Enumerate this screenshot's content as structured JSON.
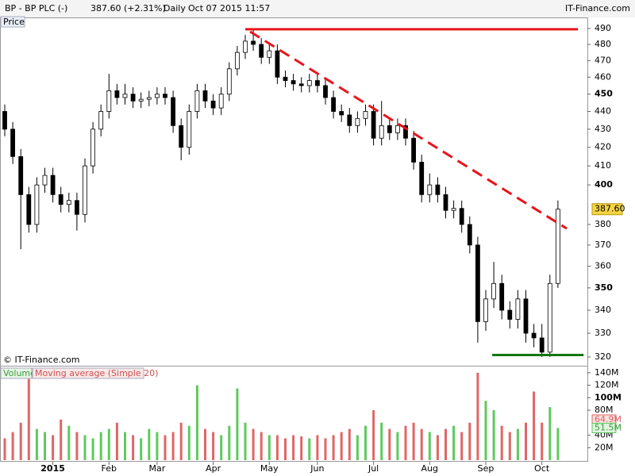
{
  "header": {
    "symbol": "BP - BP PLC (-)",
    "quote": "387.60 (+2.31%)",
    "period": "Daily",
    "datetime": "Oct 07 2015 11:57",
    "site": "IT-Finance.com"
  },
  "chart_data": {
    "type": "candlestick",
    "panel_label": "Price",
    "copyright": "© IT-Finance.com",
    "log_scale": true,
    "categories": [
      null,
      null,
      null,
      null,
      null,
      null,
      "2015",
      null,
      null,
      null,
      null,
      null,
      null,
      "Feb",
      null,
      null,
      null,
      null,
      null,
      "Mar",
      null,
      null,
      null,
      null,
      null,
      null,
      "Apr",
      null,
      null,
      null,
      null,
      null,
      null,
      "May",
      null,
      null,
      null,
      null,
      null,
      "Jun",
      null,
      null,
      null,
      null,
      null,
      null,
      "Jul",
      null,
      null,
      null,
      null,
      null,
      null,
      "Aug",
      null,
      null,
      null,
      null,
      null,
      null,
      "Sep",
      null,
      null,
      null,
      null,
      null,
      null,
      "Oct",
      null,
      null
    ],
    "open": [
      440,
      430,
      415,
      395,
      380,
      400,
      405,
      395,
      390,
      392,
      385,
      410,
      430,
      440,
      452,
      448,
      450,
      446,
      447,
      448,
      450,
      448,
      432,
      420,
      440,
      452,
      446,
      442,
      450,
      465,
      475,
      482,
      480,
      472,
      476,
      460,
      458,
      456,
      455,
      458,
      455,
      448,
      440,
      438,
      432,
      436,
      440,
      425,
      432,
      428,
      432,
      425,
      412,
      395,
      400,
      395,
      387,
      388,
      380,
      370,
      335,
      345,
      352,
      340,
      336,
      345,
      330,
      328,
      322,
      352
    ],
    "high": [
      444,
      434,
      419,
      399,
      404,
      409,
      409,
      399,
      396,
      396,
      414,
      434,
      444,
      462,
      456,
      456,
      454,
      451,
      452,
      454,
      454,
      452,
      436,
      444,
      456,
      456,
      450,
      454,
      469,
      479,
      486,
      489,
      484,
      480,
      480,
      464,
      462,
      460,
      462,
      462,
      459,
      452,
      444,
      442,
      440,
      444,
      444,
      446,
      436,
      436,
      436,
      429,
      416,
      406,
      404,
      399,
      392,
      392,
      384,
      374,
      349,
      362,
      356,
      344,
      349,
      349,
      334,
      334,
      356,
      392
    ],
    "low": [
      426,
      411,
      368,
      376,
      376,
      396,
      391,
      386,
      386,
      377,
      381,
      406,
      426,
      436,
      444,
      444,
      442,
      442,
      443,
      444,
      444,
      428,
      413,
      416,
      436,
      442,
      438,
      438,
      446,
      461,
      471,
      476,
      468,
      468,
      456,
      454,
      452,
      451,
      451,
      451,
      444,
      436,
      434,
      428,
      428,
      432,
      421,
      421,
      424,
      424,
      421,
      408,
      391,
      391,
      391,
      383,
      383,
      376,
      366,
      326,
      331,
      341,
      336,
      332,
      332,
      326,
      324,
      320,
      320,
      350
    ],
    "close": [
      430,
      415,
      395,
      380,
      400,
      405,
      395,
      390,
      392,
      385,
      410,
      430,
      440,
      452,
      448,
      450,
      446,
      447,
      448,
      450,
      448,
      432,
      420,
      440,
      452,
      446,
      442,
      450,
      465,
      475,
      482,
      480,
      472,
      476,
      460,
      458,
      456,
      455,
      458,
      455,
      448,
      440,
      438,
      432,
      436,
      440,
      425,
      432,
      428,
      432,
      425,
      412,
      395,
      400,
      395,
      387,
      388,
      380,
      370,
      335,
      345,
      352,
      340,
      336,
      345,
      330,
      328,
      322,
      352,
      387.6
    ],
    "last_label": "387.60",
    "up_color": "#ffffff",
    "down_color": "#000000",
    "ylim": [
      316.7,
      494
    ],
    "yticks": [
      490,
      480,
      470,
      460,
      450,
      440,
      430,
      420,
      410,
      400,
      380,
      370,
      360,
      350,
      340,
      330,
      320
    ],
    "trendlines": [
      {
        "color": "#e8141a",
        "dashed": false,
        "start": [
          30,
          489.5
        ],
        "end": [
          71.5,
          489.5
        ]
      },
      {
        "color": "#e8141a",
        "dashed": true,
        "start": [
          30.6,
          488
        ],
        "end": [
          70.1,
          378
        ]
      },
      {
        "color": "#127812",
        "dashed": false,
        "start": [
          60.8,
          320.8
        ],
        "end": [
          72.2,
          320.8
        ]
      }
    ],
    "volume": {
      "name": "Volume",
      "up_color": "#5fc95f",
      "down_color": "#e06666",
      "values": [
        35,
        45,
        60,
        130,
        50,
        45,
        40,
        65,
        55,
        45,
        40,
        35,
        45,
        50,
        60,
        45,
        40,
        35,
        50,
        45,
        40,
        45,
        60,
        55,
        120,
        50,
        45,
        40,
        55,
        115,
        60,
        50,
        45,
        40,
        40,
        35,
        40,
        38,
        35,
        40,
        35,
        40,
        45,
        50,
        40,
        55,
        80,
        60,
        50,
        45,
        55,
        60,
        50,
        45,
        40,
        50,
        55,
        45,
        60,
        140,
        95,
        80,
        55,
        45,
        50,
        60,
        110,
        60,
        85,
        51.5
      ],
      "last_label": "51.5M",
      "ylim": [
        0,
        150
      ],
      "yticks": [
        {
          "value": 140,
          "label": "140M"
        },
        {
          "value": 120,
          "label": "120M"
        },
        {
          "value": 100,
          "label": "100M"
        },
        {
          "value": 80,
          "label": "80M"
        },
        {
          "value": 40,
          "label": "40M"
        },
        {
          "value": 20,
          "label": "20M"
        }
      ],
      "ma": {
        "name": "Moving average (Simple 20)",
        "color": "#e06666",
        "value": 64.9,
        "label": "64.9M"
      }
    }
  }
}
